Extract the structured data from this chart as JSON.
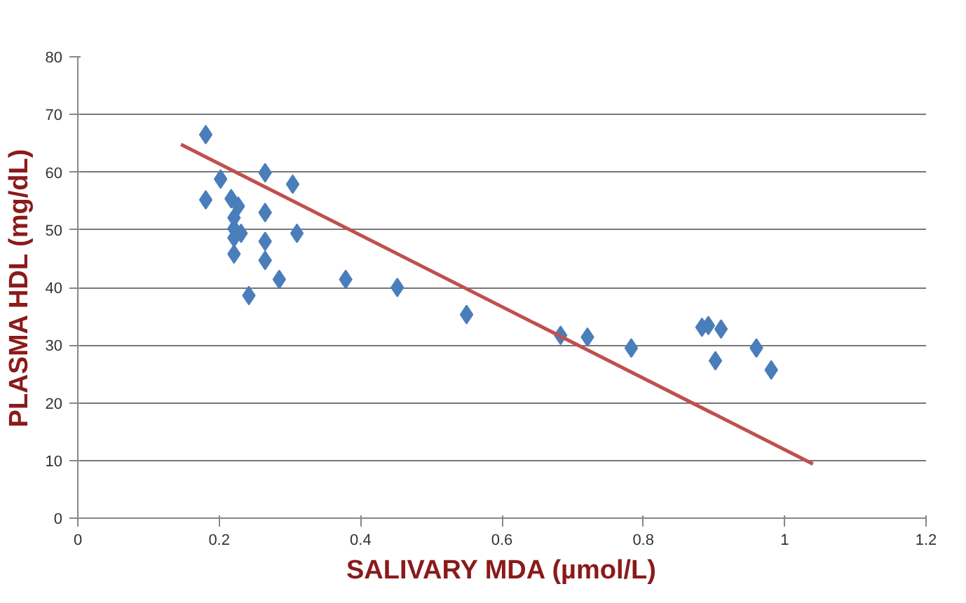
{
  "chart_data": {
    "type": "scatter",
    "xlabel": "SALIVARY MDA (µmol/L)",
    "ylabel": "PLASMA HDL (mg/dL)",
    "xlim": [
      0,
      1.2
    ],
    "ylim": [
      0,
      80
    ],
    "xticks": [
      0,
      0.2,
      0.4,
      0.6,
      0.8,
      1,
      1.2
    ],
    "yticks": [
      0,
      10,
      20,
      30,
      40,
      50,
      60,
      70,
      80
    ],
    "grid": "y",
    "series": [
      {
        "marker": "diamond",
        "color": "#4a7ebb",
        "x": [
          0.181,
          0.202,
          0.265,
          0.304,
          0.181,
          0.217,
          0.227,
          0.221,
          0.221,
          0.231,
          0.265,
          0.31,
          0.221,
          0.221,
          0.265,
          0.265,
          0.285,
          0.242,
          0.379,
          0.452,
          0.55,
          0.683,
          0.721,
          0.783,
          0.883,
          0.892,
          0.91,
          0.902,
          0.96,
          0.981
        ],
        "values": [
          66.5,
          58.8,
          59.9,
          57.9,
          55.2,
          55.4,
          54.1,
          52.1,
          50.2,
          49.4,
          53.0,
          49.4,
          48.6,
          45.8,
          48.0,
          44.7,
          41.4,
          38.6,
          41.4,
          40.0,
          35.3,
          31.7,
          31.4,
          29.5,
          33.1,
          33.4,
          32.8,
          27.3,
          29.5,
          25.7
        ]
      },
      {
        "type": "line",
        "color": "#c0504d",
        "x": [
          0.146,
          1.04
        ],
        "values": [
          64.8,
          9.4
        ]
      }
    ]
  }
}
